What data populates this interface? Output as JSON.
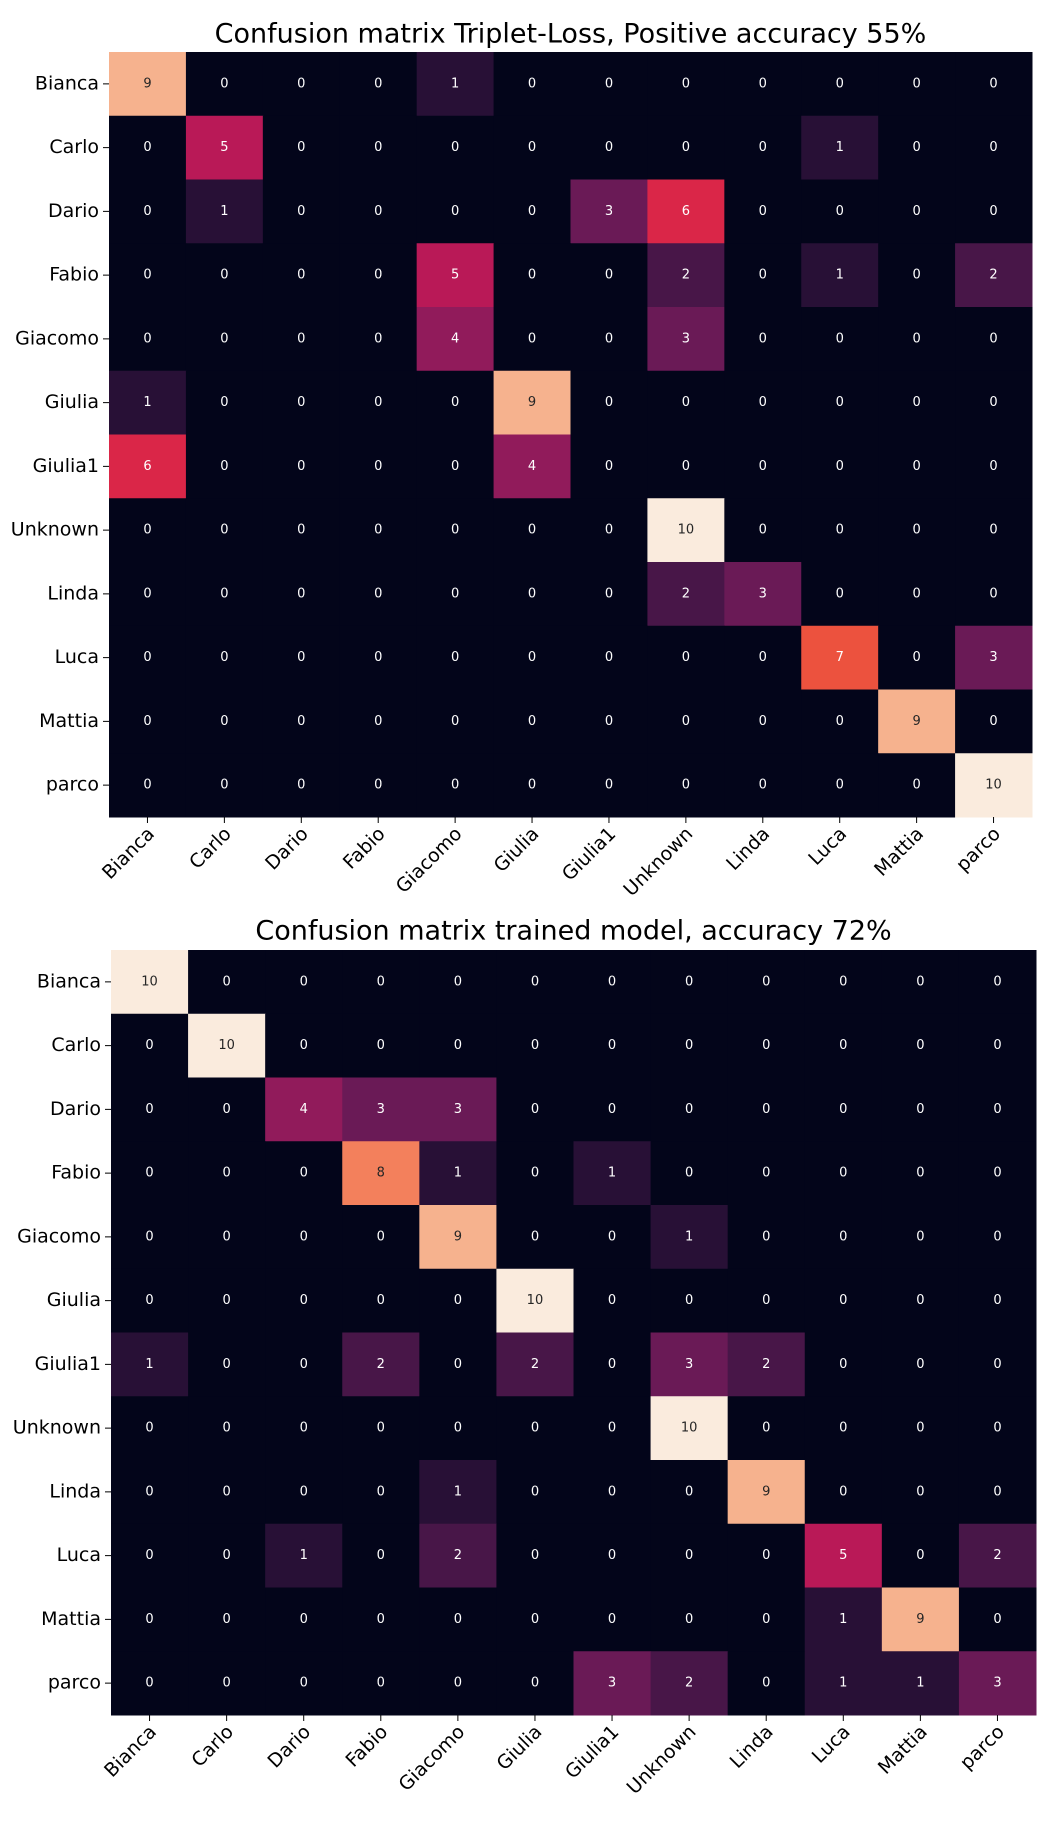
{
  "chart_data": [
    {
      "type": "heatmap",
      "title": "Confusion matrix  Triplet-Loss, Positive accuracy 55%",
      "colormap": "rocket",
      "zlim": [
        0,
        10
      ],
      "xcategories": [
        "Bianca",
        "Carlo",
        "Dario",
        "Fabio",
        "Giacomo",
        "Giulia",
        "Giulia1",
        "Unknown",
        "Linda",
        "Luca",
        "Mattia",
        "parco"
      ],
      "ycategories": [
        "Bianca",
        "Carlo",
        "Dario",
        "Fabio",
        "Giacomo",
        "Giulia",
        "Giulia1",
        "Unknown",
        "Linda",
        "Luca",
        "Mattia",
        "parco"
      ],
      "values": [
        [
          9,
          0,
          0,
          0,
          1,
          0,
          0,
          0,
          0,
          0,
          0,
          0
        ],
        [
          0,
          5,
          0,
          0,
          0,
          0,
          0,
          0,
          0,
          1,
          0,
          0
        ],
        [
          0,
          1,
          0,
          0,
          0,
          0,
          3,
          6,
          0,
          0,
          0,
          0
        ],
        [
          0,
          0,
          0,
          0,
          5,
          0,
          0,
          2,
          0,
          1,
          0,
          2
        ],
        [
          0,
          0,
          0,
          0,
          4,
          0,
          0,
          3,
          0,
          0,
          0,
          0
        ],
        [
          1,
          0,
          0,
          0,
          0,
          9,
          0,
          0,
          0,
          0,
          0,
          0
        ],
        [
          6,
          0,
          0,
          0,
          0,
          4,
          0,
          0,
          0,
          0,
          0,
          0
        ],
        [
          0,
          0,
          0,
          0,
          0,
          0,
          0,
          10,
          0,
          0,
          0,
          0
        ],
        [
          0,
          0,
          0,
          0,
          0,
          0,
          0,
          2,
          3,
          0,
          0,
          0
        ],
        [
          0,
          0,
          0,
          0,
          0,
          0,
          0,
          0,
          0,
          7,
          0,
          3
        ],
        [
          0,
          0,
          0,
          0,
          0,
          0,
          0,
          0,
          0,
          0,
          9,
          0
        ],
        [
          0,
          0,
          0,
          0,
          0,
          0,
          0,
          0,
          0,
          0,
          0,
          10
        ]
      ]
    },
    {
      "type": "heatmap",
      "title": "Confusion matrix trained model,  accuracy 72%",
      "colormap": "rocket",
      "zlim": [
        0,
        10
      ],
      "xcategories": [
        "Bianca",
        "Carlo",
        "Dario",
        "Fabio",
        "Giacomo",
        "Giulia",
        "Giulia1",
        "Unknown",
        "Linda",
        "Luca",
        "Mattia",
        "parco"
      ],
      "ycategories": [
        "Bianca",
        "Carlo",
        "Dario",
        "Fabio",
        "Giacomo",
        "Giulia",
        "Giulia1",
        "Unknown",
        "Linda",
        "Luca",
        "Mattia",
        "parco"
      ],
      "values": [
        [
          10,
          0,
          0,
          0,
          0,
          0,
          0,
          0,
          0,
          0,
          0,
          0
        ],
        [
          0,
          10,
          0,
          0,
          0,
          0,
          0,
          0,
          0,
          0,
          0,
          0
        ],
        [
          0,
          0,
          4,
          3,
          3,
          0,
          0,
          0,
          0,
          0,
          0,
          0
        ],
        [
          0,
          0,
          0,
          8,
          1,
          0,
          1,
          0,
          0,
          0,
          0,
          0
        ],
        [
          0,
          0,
          0,
          0,
          9,
          0,
          0,
          1,
          0,
          0,
          0,
          0
        ],
        [
          0,
          0,
          0,
          0,
          0,
          10,
          0,
          0,
          0,
          0,
          0,
          0
        ],
        [
          1,
          0,
          0,
          2,
          0,
          2,
          0,
          3,
          2,
          0,
          0,
          0
        ],
        [
          0,
          0,
          0,
          0,
          0,
          0,
          0,
          10,
          0,
          0,
          0,
          0
        ],
        [
          0,
          0,
          0,
          0,
          1,
          0,
          0,
          0,
          9,
          0,
          0,
          0
        ],
        [
          0,
          0,
          1,
          0,
          2,
          0,
          0,
          0,
          0,
          5,
          0,
          2
        ],
        [
          0,
          0,
          0,
          0,
          0,
          0,
          0,
          0,
          0,
          1,
          9,
          0
        ],
        [
          0,
          0,
          0,
          0,
          0,
          0,
          3,
          2,
          0,
          1,
          1,
          3
        ]
      ]
    }
  ]
}
